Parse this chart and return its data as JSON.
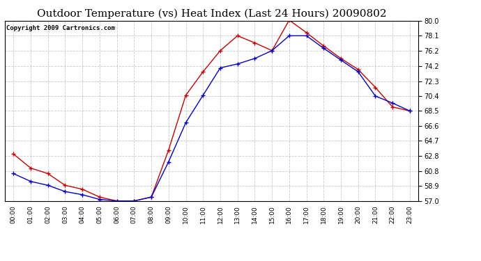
{
  "title": "Outdoor Temperature (vs) Heat Index (Last 24 Hours) 20090802",
  "copyright": "Copyright 2009 Cartronics.com",
  "hours": [
    "00:00",
    "01:00",
    "02:00",
    "03:00",
    "04:00",
    "05:00",
    "06:00",
    "07:00",
    "08:00",
    "09:00",
    "10:00",
    "11:00",
    "12:00",
    "13:00",
    "14:00",
    "15:00",
    "16:00",
    "17:00",
    "18:00",
    "19:00",
    "20:00",
    "21:00",
    "22:00",
    "23:00"
  ],
  "temp": [
    60.5,
    59.5,
    59.0,
    58.2,
    57.8,
    57.2,
    57.0,
    57.0,
    57.5,
    62.0,
    67.0,
    70.5,
    74.0,
    74.5,
    75.2,
    76.2,
    78.1,
    78.1,
    76.5,
    75.0,
    73.5,
    70.4,
    69.5,
    68.5
  ],
  "heat_index": [
    63.0,
    61.2,
    60.5,
    59.0,
    58.5,
    57.5,
    57.0,
    57.0,
    57.5,
    63.5,
    70.5,
    73.5,
    76.2,
    78.1,
    77.2,
    76.2,
    80.1,
    78.5,
    76.8,
    75.2,
    73.8,
    71.5,
    69.0,
    68.5
  ],
  "ylim_min": 57.0,
  "ylim_max": 80.0,
  "yticks": [
    57.0,
    58.9,
    60.8,
    62.8,
    64.7,
    66.6,
    68.5,
    70.4,
    72.3,
    74.2,
    76.2,
    78.1,
    80.0
  ],
  "temp_color": "#0000cc",
  "heat_color": "#cc0000",
  "bg_color": "#ffffff",
  "grid_color": "#bbbbbb",
  "title_fontsize": 11,
  "copyright_fontsize": 6.5
}
